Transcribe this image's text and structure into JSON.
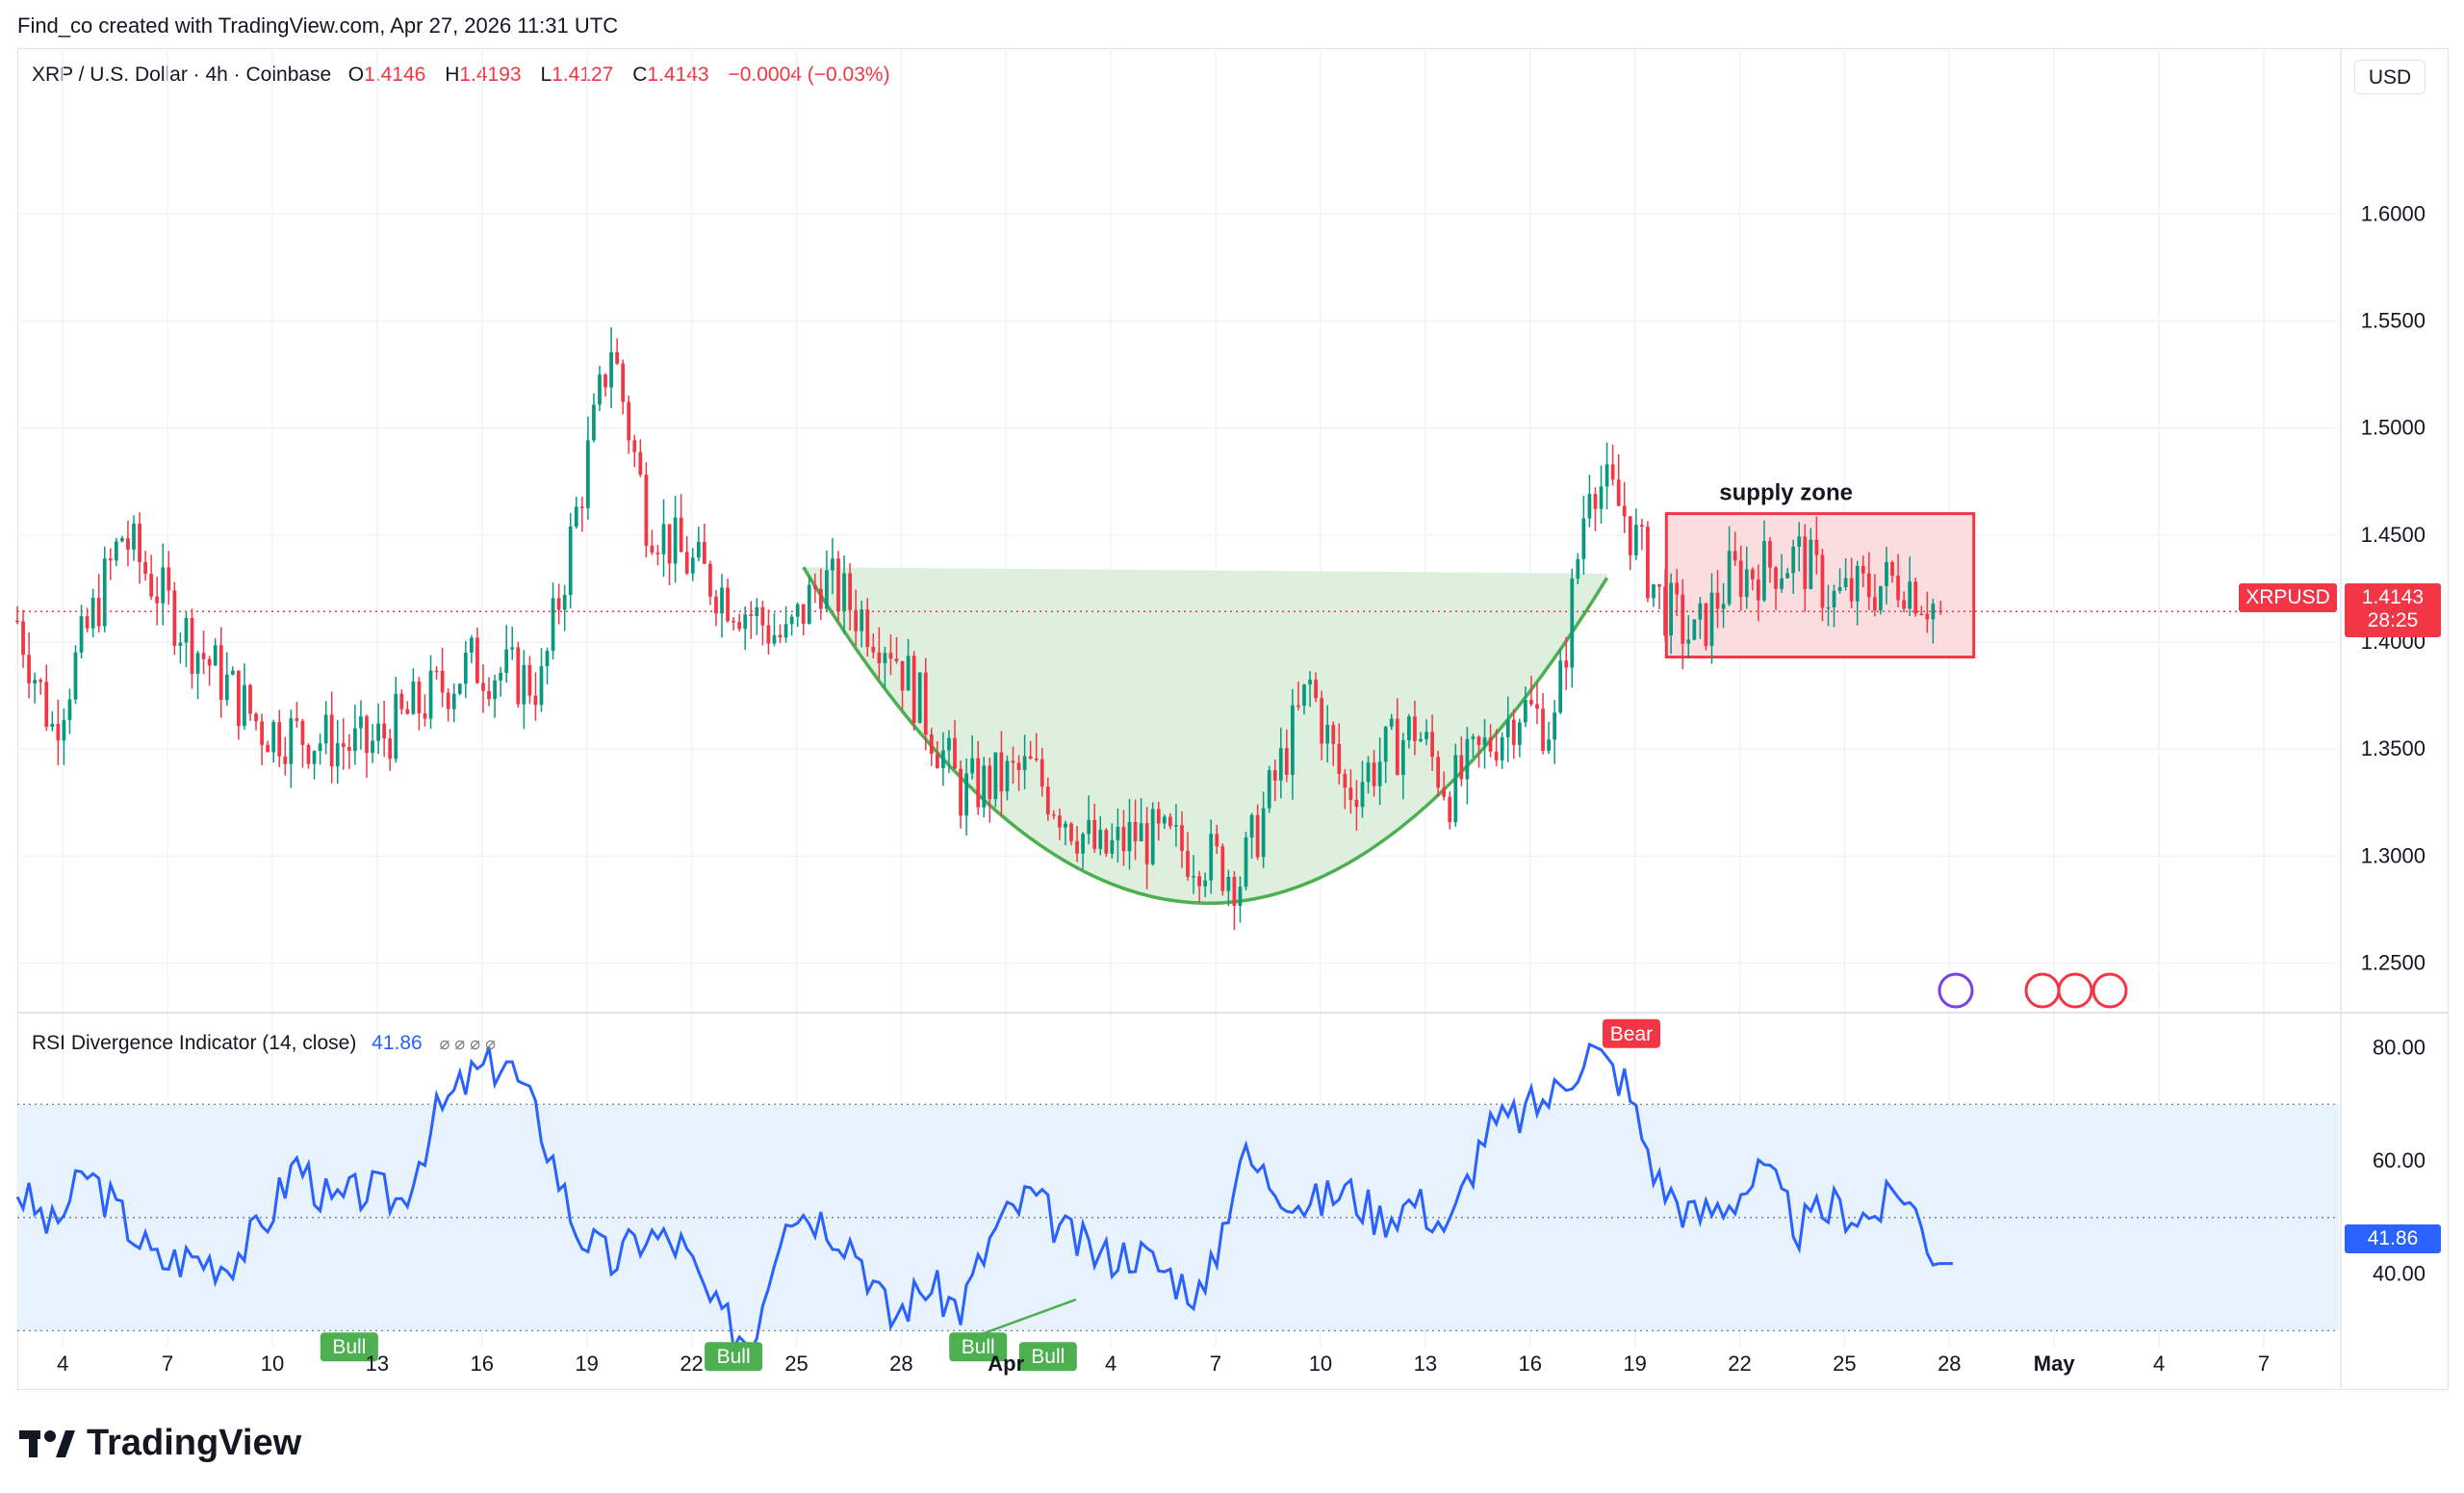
{
  "header": {
    "attribution": "Find_co created with TradingView.com, Apr 27, 2026 11:31 UTC"
  },
  "legend": {
    "symbol": "XRP / U.S. Dollar · 4h · Coinbase",
    "open_label": "O",
    "open": "1.4146",
    "high_label": "H",
    "high": "1.4193",
    "low_label": "L",
    "low": "1.4127",
    "close_label": "C",
    "close": "1.4143",
    "change": "−0.0004 (−0.03%)"
  },
  "currency_button": "USD",
  "price_tag": {
    "symbol": "XRPUSD",
    "price": "1.4143",
    "countdown": "28:25"
  },
  "rsi": {
    "title": "RSI Divergence Indicator (14, close)",
    "value": "41.86",
    "eye_icons": "⌀ ⌀ ⌀ ⌀"
  },
  "annotations": {
    "supply_zone": "supply zone",
    "bull_labels": [
      "Bull",
      "Bull",
      "Bull",
      "Bull"
    ],
    "bear_label": "Bear"
  },
  "brand": {
    "name": "TradingView"
  },
  "colors": {
    "up": "#089981",
    "down": "#f23645",
    "rsi_line": "#2962ff",
    "cup_fill": "#d8ecd8",
    "cup_line": "#4caf50",
    "zone_fill": "#fcd9dc",
    "zone_border": "#f23645",
    "grid": "#f0f3fa"
  },
  "chart_data": [
    {
      "type": "candlestick",
      "title": "XRP / U.S. Dollar · 4h · Coinbase",
      "y_ticks": [
        "1.2500",
        "1.3000",
        "1.3500",
        "1.4000",
        "1.4500",
        "1.5000",
        "1.5500",
        "1.6000"
      ],
      "ylim": [
        1.23,
        1.655
      ],
      "x_ticks": [
        "4",
        "7",
        "10",
        "13",
        "16",
        "19",
        "22",
        "25",
        "28",
        "Apr",
        "4",
        "7",
        "10",
        "13",
        "16",
        "19",
        "22",
        "25",
        "28",
        "May",
        "4",
        "7"
      ],
      "series_path": [
        [
          0,
          1.41
        ],
        [
          1,
          1.36
        ],
        [
          3,
          1.45
        ],
        [
          5,
          1.4
        ],
        [
          7,
          1.36
        ],
        [
          10,
          1.35
        ],
        [
          13,
          1.39
        ],
        [
          15,
          1.38
        ],
        [
          16,
          1.46
        ],
        [
          17,
          1.54
        ],
        [
          18,
          1.46
        ],
        [
          19,
          1.44
        ],
        [
          22,
          1.4
        ],
        [
          23,
          1.43
        ],
        [
          25,
          1.4
        ],
        [
          27,
          1.33
        ],
        [
          29,
          1.34
        ],
        [
          31,
          1.3
        ],
        [
          32,
          1.31
        ],
        [
          34,
          1.3
        ],
        [
          35,
          1.29
        ],
        [
          37,
          1.38
        ],
        [
          38,
          1.33
        ],
        [
          40,
          1.36
        ],
        [
          41,
          1.33
        ],
        [
          43,
          1.37
        ],
        [
          44,
          1.36
        ],
        [
          45,
          1.48
        ],
        [
          46,
          1.46
        ],
        [
          47,
          1.42
        ],
        [
          48,
          1.4
        ],
        [
          49,
          1.43
        ],
        [
          51,
          1.44
        ],
        [
          52,
          1.42
        ],
        [
          54,
          1.43
        ],
        [
          55,
          1.415
        ]
      ],
      "last": {
        "open": 1.4146,
        "high": 1.4193,
        "low": 1.4127,
        "close": 1.4143
      },
      "cup_pattern": {
        "start": [
          22.5,
          1.435
        ],
        "bottom": [
          34,
          1.278
        ],
        "end": [
          45.5,
          1.43
        ]
      },
      "supply_zone": {
        "x": [
          47.2,
          56
        ],
        "y": [
          1.393,
          1.46
        ],
        "label": "supply zone"
      }
    },
    {
      "type": "line",
      "title": "RSI Divergence Indicator (14, close)",
      "y_ticks": [
        "40.00",
        "60.00",
        "80.00"
      ],
      "ylim": [
        27,
        84
      ],
      "band": [
        30,
        70
      ],
      "mid": 50,
      "last_value": 41.86,
      "series_path": [
        [
          0,
          55
        ],
        [
          1,
          48
        ],
        [
          2,
          58
        ],
        [
          3,
          50
        ],
        [
          4,
          42
        ],
        [
          5,
          43
        ],
        [
          6,
          42
        ],
        [
          7,
          48
        ],
        [
          8,
          60
        ],
        [
          9,
          52
        ],
        [
          10,
          55
        ],
        [
          11,
          53
        ],
        [
          12,
          68
        ],
        [
          13,
          75
        ],
        [
          14,
          78
        ],
        [
          15,
          66
        ],
        [
          16,
          48
        ],
        [
          17,
          42
        ],
        [
          18,
          47
        ],
        [
          19,
          45
        ],
        [
          20,
          33
        ],
        [
          21,
          28
        ],
        [
          22,
          52
        ],
        [
          23,
          50
        ],
        [
          24,
          45
        ],
        [
          25,
          32
        ],
        [
          26,
          38
        ],
        [
          27,
          34
        ],
        [
          28,
          48
        ],
        [
          29,
          54
        ],
        [
          30,
          47
        ],
        [
          31,
          43
        ],
        [
          32,
          44
        ],
        [
          33,
          40
        ],
        [
          34,
          36
        ],
        [
          35,
          61
        ],
        [
          36,
          56
        ],
        [
          37,
          52
        ],
        [
          38,
          55
        ],
        [
          39,
          50
        ],
        [
          40,
          53
        ],
        [
          41,
          48
        ],
        [
          42,
          65
        ],
        [
          43,
          68
        ],
        [
          44,
          72
        ],
        [
          45,
          80
        ],
        [
          46,
          74
        ],
        [
          47,
          56
        ],
        [
          48,
          50
        ],
        [
          49,
          53
        ],
        [
          50,
          58
        ],
        [
          51,
          48
        ],
        [
          52,
          52
        ],
        [
          53,
          50
        ],
        [
          54,
          55
        ],
        [
          55,
          42
        ]
      ],
      "signals": [
        {
          "x": 9.5,
          "label": "Bull"
        },
        {
          "x": 20.5,
          "label": "Bull"
        },
        {
          "x": 27.5,
          "label": "Bull"
        },
        {
          "x": 29.5,
          "label": "Bull"
        },
        {
          "x": 46.2,
          "label": "Bear"
        }
      ]
    }
  ]
}
